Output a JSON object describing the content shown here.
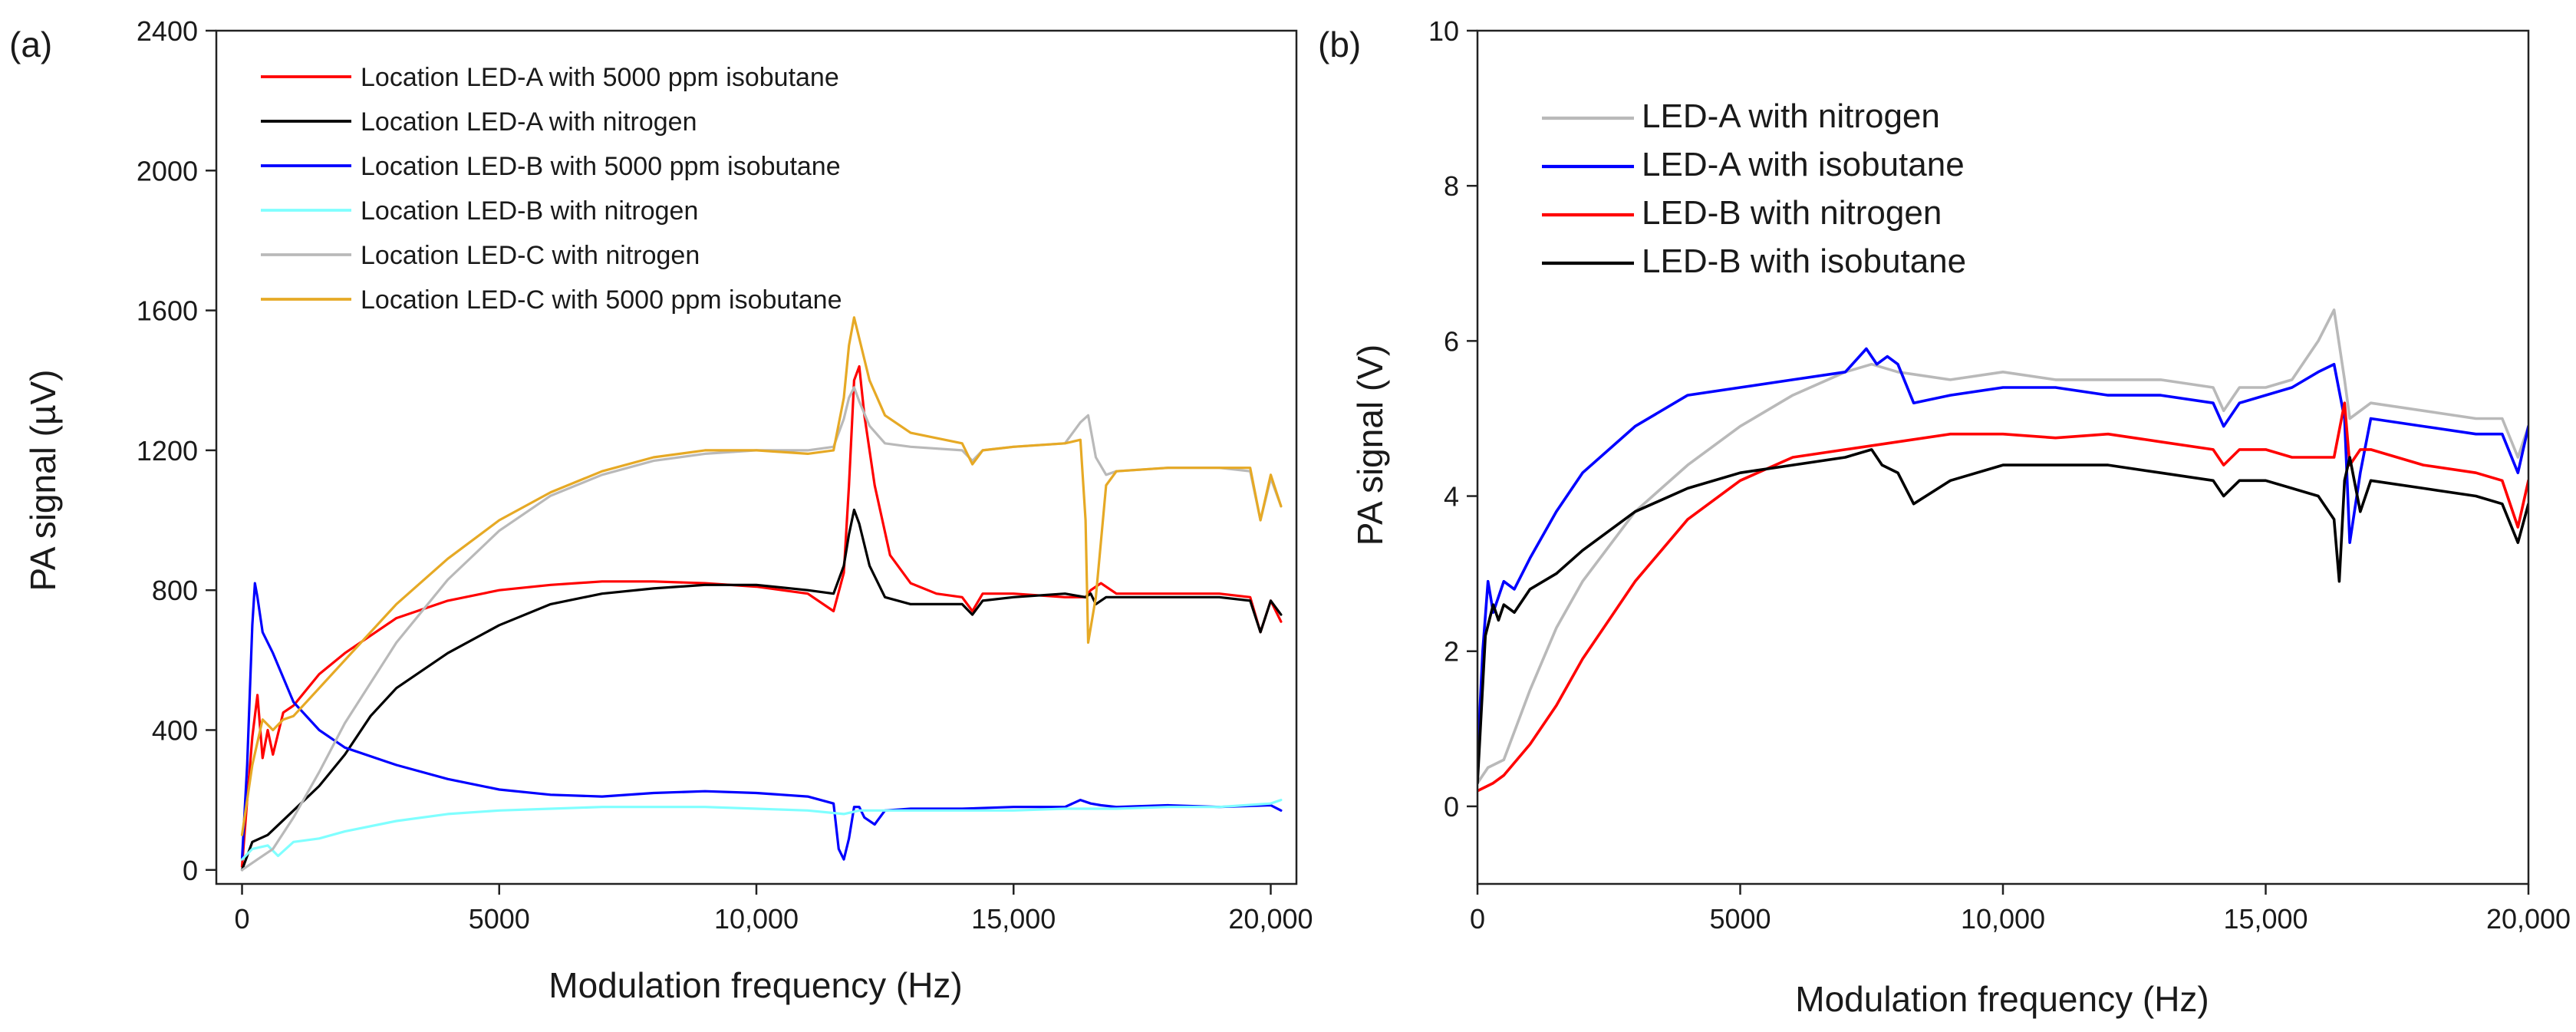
{
  "chart_data": [
    {
      "panel_label": "(a)",
      "type": "line",
      "xlabel": "Modulation frequency (Hz)",
      "ylabel": "PA signal (µV)",
      "xlim": [
        -500,
        20500
      ],
      "ylim": [
        -40,
        2400
      ],
      "xticks": [
        0,
        5000,
        10000,
        15000,
        20000
      ],
      "xtick_labels": [
        "0",
        "5000",
        "10,000",
        "15,000",
        "20,000"
      ],
      "yticks": [
        0,
        400,
        800,
        1200,
        1600,
        2000,
        2400
      ],
      "ytick_labels": [
        "0",
        "400",
        "800",
        "1200",
        "1600",
        "2000",
        "2400"
      ],
      "grid": false,
      "legend_position": "top-left",
      "series": [
        {
          "name": "Location LED-A with 5000 ppm isobutane",
          "color": "#ff0000",
          "x": [
            0,
            100,
            200,
            300,
            400,
            500,
            600,
            800,
            1000,
            1500,
            2000,
            3000,
            4000,
            5000,
            6000,
            7000,
            8000,
            9000,
            10000,
            11000,
            11500,
            11700,
            11800,
            11900,
            12000,
            12100,
            12300,
            12600,
            13000,
            13500,
            14000,
            14200,
            14400,
            15000,
            16000,
            16400,
            16500,
            16700,
            17000,
            18000,
            19000,
            19600,
            19800,
            20000,
            20200
          ],
          "values": [
            10,
            200,
            380,
            500,
            320,
            400,
            330,
            450,
            470,
            560,
            620,
            720,
            770,
            800,
            815,
            825,
            825,
            820,
            810,
            790,
            740,
            850,
            1100,
            1400,
            1440,
            1300,
            1100,
            900,
            820,
            790,
            780,
            740,
            790,
            790,
            780,
            780,
            800,
            820,
            790,
            790,
            790,
            780,
            680,
            770,
            710
          ]
        },
        {
          "name": "Location LED-A with nitrogen",
          "color": "#000000",
          "x": [
            0,
            200,
            500,
            1000,
            1500,
            2000,
            2500,
            3000,
            4000,
            5000,
            6000,
            7000,
            8000,
            9000,
            10000,
            11000,
            11500,
            11700,
            11800,
            11900,
            12000,
            12200,
            12500,
            13000,
            13500,
            14000,
            14200,
            14400,
            15000,
            16000,
            16400,
            16500,
            16600,
            16800,
            17000,
            18000,
            19000,
            19600,
            19800,
            20000,
            20200
          ],
          "values": [
            0,
            80,
            100,
            170,
            240,
            330,
            440,
            520,
            620,
            700,
            760,
            790,
            805,
            815,
            815,
            800,
            790,
            870,
            960,
            1030,
            990,
            870,
            780,
            760,
            760,
            760,
            730,
            770,
            780,
            790,
            780,
            790,
            760,
            780,
            780,
            780,
            780,
            770,
            680,
            770,
            730
          ]
        },
        {
          "name": "Location LED-B with 5000 ppm isobutane",
          "color": "#0000ff",
          "x": [
            0,
            100,
            200,
            250,
            300,
            400,
            600,
            800,
            1000,
            1500,
            2000,
            3000,
            4000,
            5000,
            6000,
            7000,
            8000,
            9000,
            10000,
            11000,
            11500,
            11600,
            11700,
            11800,
            11900,
            12000,
            12100,
            12300,
            12500,
            13000,
            14000,
            15000,
            16000,
            16300,
            16500,
            16700,
            17000,
            18000,
            19000,
            20000,
            20200
          ],
          "values": [
            30,
            300,
            700,
            820,
            780,
            680,
            620,
            550,
            480,
            400,
            350,
            300,
            260,
            230,
            215,
            210,
            220,
            225,
            220,
            210,
            190,
            60,
            30,
            90,
            180,
            180,
            150,
            130,
            170,
            175,
            175,
            180,
            180,
            200,
            190,
            185,
            180,
            185,
            180,
            185,
            170
          ]
        },
        {
          "name": "Location LED-B with nitrogen",
          "color": "#80ffff",
          "x": [
            0,
            200,
            500,
            700,
            1000,
            1500,
            2000,
            3000,
            4000,
            5000,
            6000,
            7000,
            8000,
            9000,
            10000,
            11000,
            11700,
            12000,
            13000,
            14000,
            15000,
            16000,
            17000,
            18000,
            19000,
            20000,
            20200
          ],
          "values": [
            30,
            60,
            70,
            40,
            80,
            90,
            110,
            140,
            160,
            170,
            175,
            180,
            180,
            180,
            175,
            170,
            160,
            170,
            170,
            170,
            170,
            175,
            175,
            180,
            180,
            190,
            200
          ]
        },
        {
          "name": "Location LED-C with nitrogen",
          "color": "#b9b9b9",
          "x": [
            0,
            300,
            600,
            1000,
            1500,
            2000,
            3000,
            4000,
            5000,
            6000,
            7000,
            8000,
            9000,
            10000,
            11000,
            11500,
            11700,
            11800,
            11900,
            12000,
            12200,
            12500,
            13000,
            14000,
            14200,
            14400,
            15000,
            16000,
            16300,
            16450,
            16600,
            16800,
            17000,
            18000,
            19000,
            19600,
            19800,
            20000,
            20200
          ],
          "values": [
            0,
            30,
            60,
            150,
            280,
            420,
            650,
            830,
            970,
            1070,
            1130,
            1170,
            1190,
            1200,
            1200,
            1210,
            1290,
            1350,
            1380,
            1340,
            1270,
            1220,
            1210,
            1200,
            1170,
            1200,
            1210,
            1220,
            1280,
            1300,
            1180,
            1130,
            1140,
            1150,
            1150,
            1140,
            1000,
            1120,
            1040
          ]
        },
        {
          "name": "Location LED-C with 5000 ppm isobutane",
          "color": "#e6a925",
          "x": [
            0,
            200,
            400,
            600,
            800,
            1000,
            1500,
            2000,
            3000,
            4000,
            5000,
            6000,
            7000,
            8000,
            9000,
            10000,
            11000,
            11500,
            11700,
            11800,
            11900,
            12000,
            12200,
            12500,
            13000,
            14000,
            14200,
            14400,
            15000,
            16000,
            16300,
            16400,
            16450,
            16600,
            16800,
            17000,
            18000,
            19000,
            19600,
            19800,
            20000,
            20200
          ],
          "values": [
            100,
            300,
            430,
            400,
            430,
            440,
            520,
            600,
            760,
            890,
            1000,
            1080,
            1140,
            1180,
            1200,
            1200,
            1190,
            1200,
            1350,
            1500,
            1580,
            1520,
            1400,
            1300,
            1250,
            1220,
            1160,
            1200,
            1210,
            1220,
            1230,
            1000,
            650,
            780,
            1100,
            1140,
            1150,
            1150,
            1150,
            1000,
            1130,
            1040
          ]
        }
      ]
    },
    {
      "panel_label": "(b)",
      "type": "line",
      "xlabel": "Modulation frequency (Hz)",
      "ylabel": "PA signal (V)",
      "xlim": [
        0,
        20000
      ],
      "ylim": [
        -1,
        10
      ],
      "xticks": [
        0,
        5000,
        10000,
        15000,
        20000
      ],
      "xtick_labels": [
        "0",
        "5000",
        "10,000",
        "15,000",
        "20,000"
      ],
      "yticks": [
        0,
        2,
        4,
        6,
        8,
        10
      ],
      "ytick_labels": [
        "0",
        "2",
        "4",
        "6",
        "8",
        "10"
      ],
      "grid": false,
      "legend_position": "top-left",
      "series": [
        {
          "name": "LED-A with nitrogen",
          "color": "#b9b9b9",
          "x": [
            0,
            200,
            500,
            1000,
            1500,
            2000,
            3000,
            4000,
            5000,
            6000,
            7000,
            7500,
            8000,
            9000,
            10000,
            11000,
            12000,
            13000,
            14000,
            14200,
            14500,
            15000,
            15500,
            16000,
            16300,
            16500,
            16600,
            17000,
            18000,
            19000,
            19500,
            19800,
            20000
          ],
          "values": [
            0.3,
            0.5,
            0.6,
            1.5,
            2.3,
            2.9,
            3.8,
            4.4,
            4.9,
            5.3,
            5.6,
            5.7,
            5.6,
            5.5,
            5.6,
            5.5,
            5.5,
            5.5,
            5.4,
            5.1,
            5.4,
            5.4,
            5.5,
            6.0,
            6.4,
            5.5,
            5.0,
            5.2,
            5.1,
            5.0,
            5.0,
            4.5,
            4.9
          ]
        },
        {
          "name": "LED-A with isobutane",
          "color": "#0000ff",
          "x": [
            0,
            100,
            200,
            300,
            500,
            700,
            1000,
            1500,
            2000,
            3000,
            4000,
            5000,
            6000,
            7000,
            7400,
            7600,
            7800,
            8000,
            8300,
            9000,
            10000,
            11000,
            12000,
            13000,
            14000,
            14200,
            14500,
            15000,
            15500,
            16000,
            16300,
            16500,
            16600,
            16800,
            17000,
            18000,
            19000,
            19500,
            19800,
            20000
          ],
          "values": [
            0.6,
            2.0,
            2.9,
            2.5,
            2.9,
            2.8,
            3.2,
            3.8,
            4.3,
            4.9,
            5.3,
            5.4,
            5.5,
            5.6,
            5.9,
            5.7,
            5.8,
            5.7,
            5.2,
            5.3,
            5.4,
            5.4,
            5.3,
            5.3,
            5.2,
            4.9,
            5.2,
            5.3,
            5.4,
            5.6,
            5.7,
            5.0,
            3.4,
            4.3,
            5.0,
            4.9,
            4.8,
            4.8,
            4.3,
            4.9
          ]
        },
        {
          "name": "LED-B with nitrogen",
          "color": "#ff0000",
          "x": [
            0,
            300,
            500,
            1000,
            1500,
            2000,
            2500,
            3000,
            3500,
            4000,
            5000,
            6000,
            7000,
            8000,
            9000,
            10000,
            11000,
            12000,
            13000,
            14000,
            14200,
            14500,
            15000,
            15500,
            16000,
            16300,
            16500,
            16600,
            16800,
            17000,
            18000,
            19000,
            19500,
            19800,
            20000
          ],
          "values": [
            0.2,
            0.3,
            0.4,
            0.8,
            1.3,
            1.9,
            2.4,
            2.9,
            3.3,
            3.7,
            4.2,
            4.5,
            4.6,
            4.7,
            4.8,
            4.8,
            4.75,
            4.8,
            4.7,
            4.6,
            4.4,
            4.6,
            4.6,
            4.5,
            4.5,
            4.5,
            5.2,
            4.4,
            4.6,
            4.6,
            4.4,
            4.3,
            4.2,
            3.6,
            4.2
          ]
        },
        {
          "name": "LED-B with isobutane",
          "color": "#000000",
          "x": [
            0,
            150,
            300,
            400,
            500,
            700,
            1000,
            1500,
            2000,
            3000,
            4000,
            5000,
            6000,
            7000,
            7500,
            7700,
            8000,
            8300,
            9000,
            10000,
            11000,
            12000,
            13000,
            14000,
            14200,
            14500,
            15000,
            15500,
            16000,
            16300,
            16400,
            16500,
            16600,
            16800,
            17000,
            18000,
            19000,
            19500,
            19800,
            20000
          ],
          "values": [
            0.3,
            2.2,
            2.6,
            2.4,
            2.6,
            2.5,
            2.8,
            3.0,
            3.3,
            3.8,
            4.1,
            4.3,
            4.4,
            4.5,
            4.6,
            4.4,
            4.3,
            3.9,
            4.2,
            4.4,
            4.4,
            4.4,
            4.3,
            4.2,
            4.0,
            4.2,
            4.2,
            4.1,
            4.0,
            3.7,
            2.9,
            4.2,
            4.5,
            3.8,
            4.2,
            4.1,
            4.0,
            3.9,
            3.4,
            3.9
          ]
        }
      ]
    }
  ]
}
